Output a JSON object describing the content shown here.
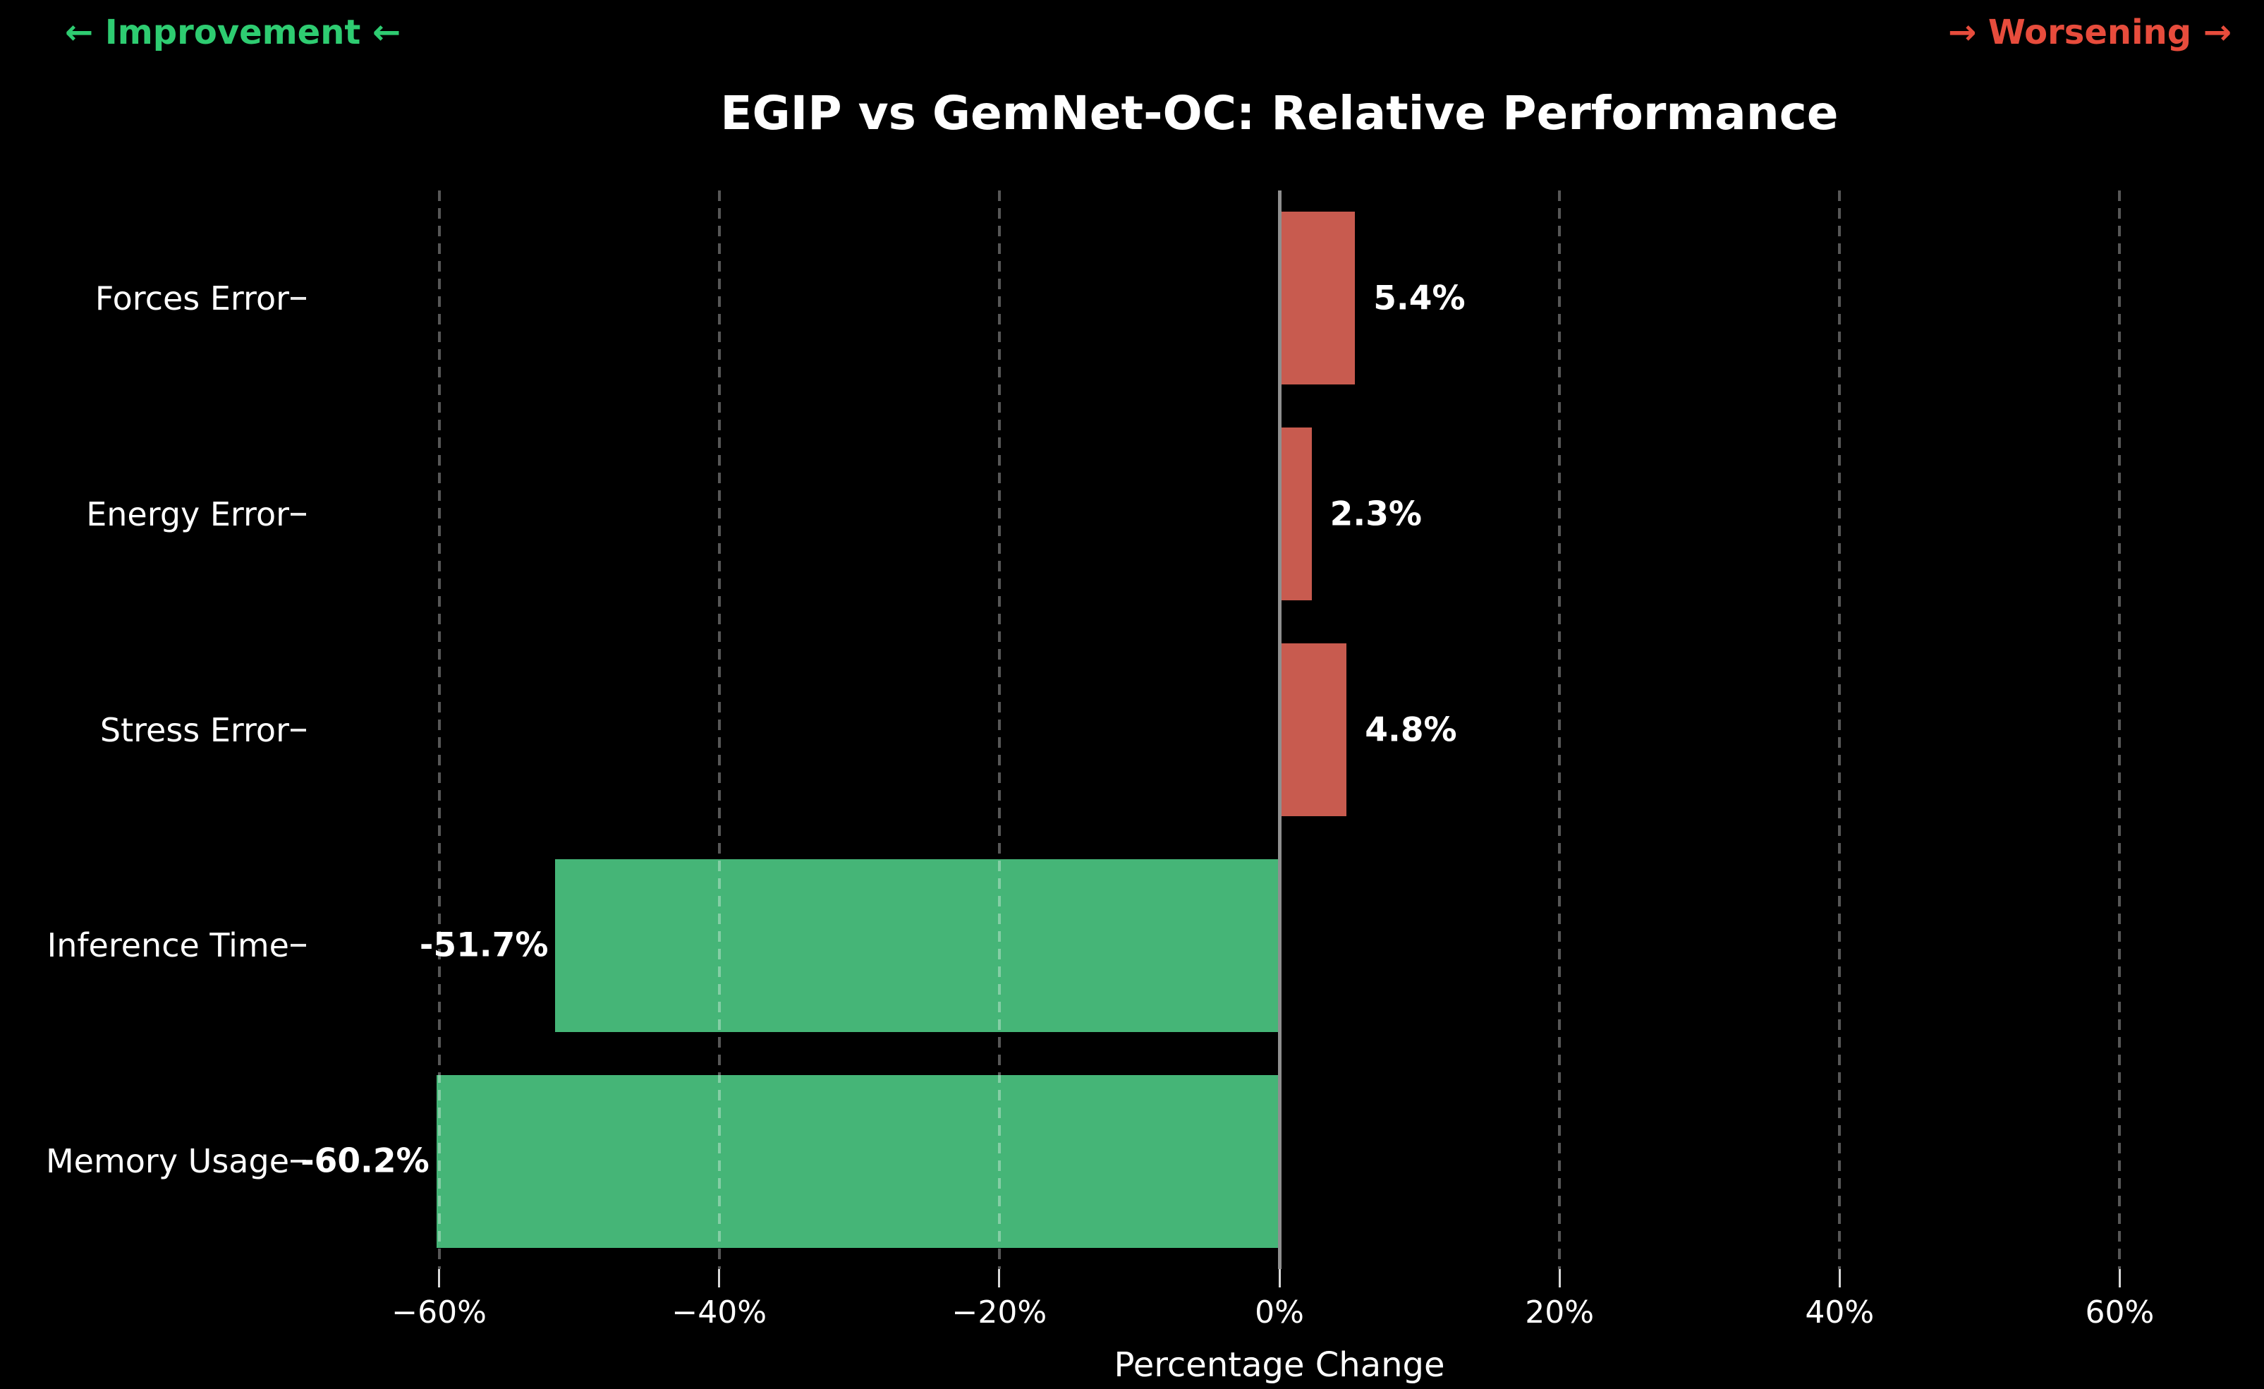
{
  "annotations": {
    "improvement": "← Improvement ←",
    "worsening": "→ Worsening →"
  },
  "chart_data": {
    "type": "bar",
    "orientation": "horizontal",
    "title": "EGIP vs GemNet-OC: Relative Performance",
    "categories": [
      "Forces Error",
      "Energy Error",
      "Stress Error",
      "Inference Time",
      "Memory Usage"
    ],
    "values": [
      5.4,
      2.3,
      4.8,
      -51.7,
      -60.2
    ],
    "value_labels": [
      "5.4%",
      "2.3%",
      "4.8%",
      "-51.7%",
      "-60.2%"
    ],
    "xlabel": "Percentage Change",
    "xlim": [
      -69.5,
      69.5
    ],
    "xticks": [
      -60,
      -40,
      -20,
      0,
      20,
      40,
      60
    ],
    "xtick_labels": [
      "−60%",
      "−40%",
      "−20%",
      "0%",
      "20%",
      "40%",
      "60%"
    ],
    "grid": "vertical-dashed",
    "legend": "none",
    "colors": {
      "positive_bar": "#c85b4f",
      "negative_bar": "#45b577",
      "background": "#000000",
      "text": "#ffffff",
      "improvement_text": "#2ecc71",
      "worsening_text": "#e74c3c",
      "zero_line": "#8f8f8f"
    }
  }
}
